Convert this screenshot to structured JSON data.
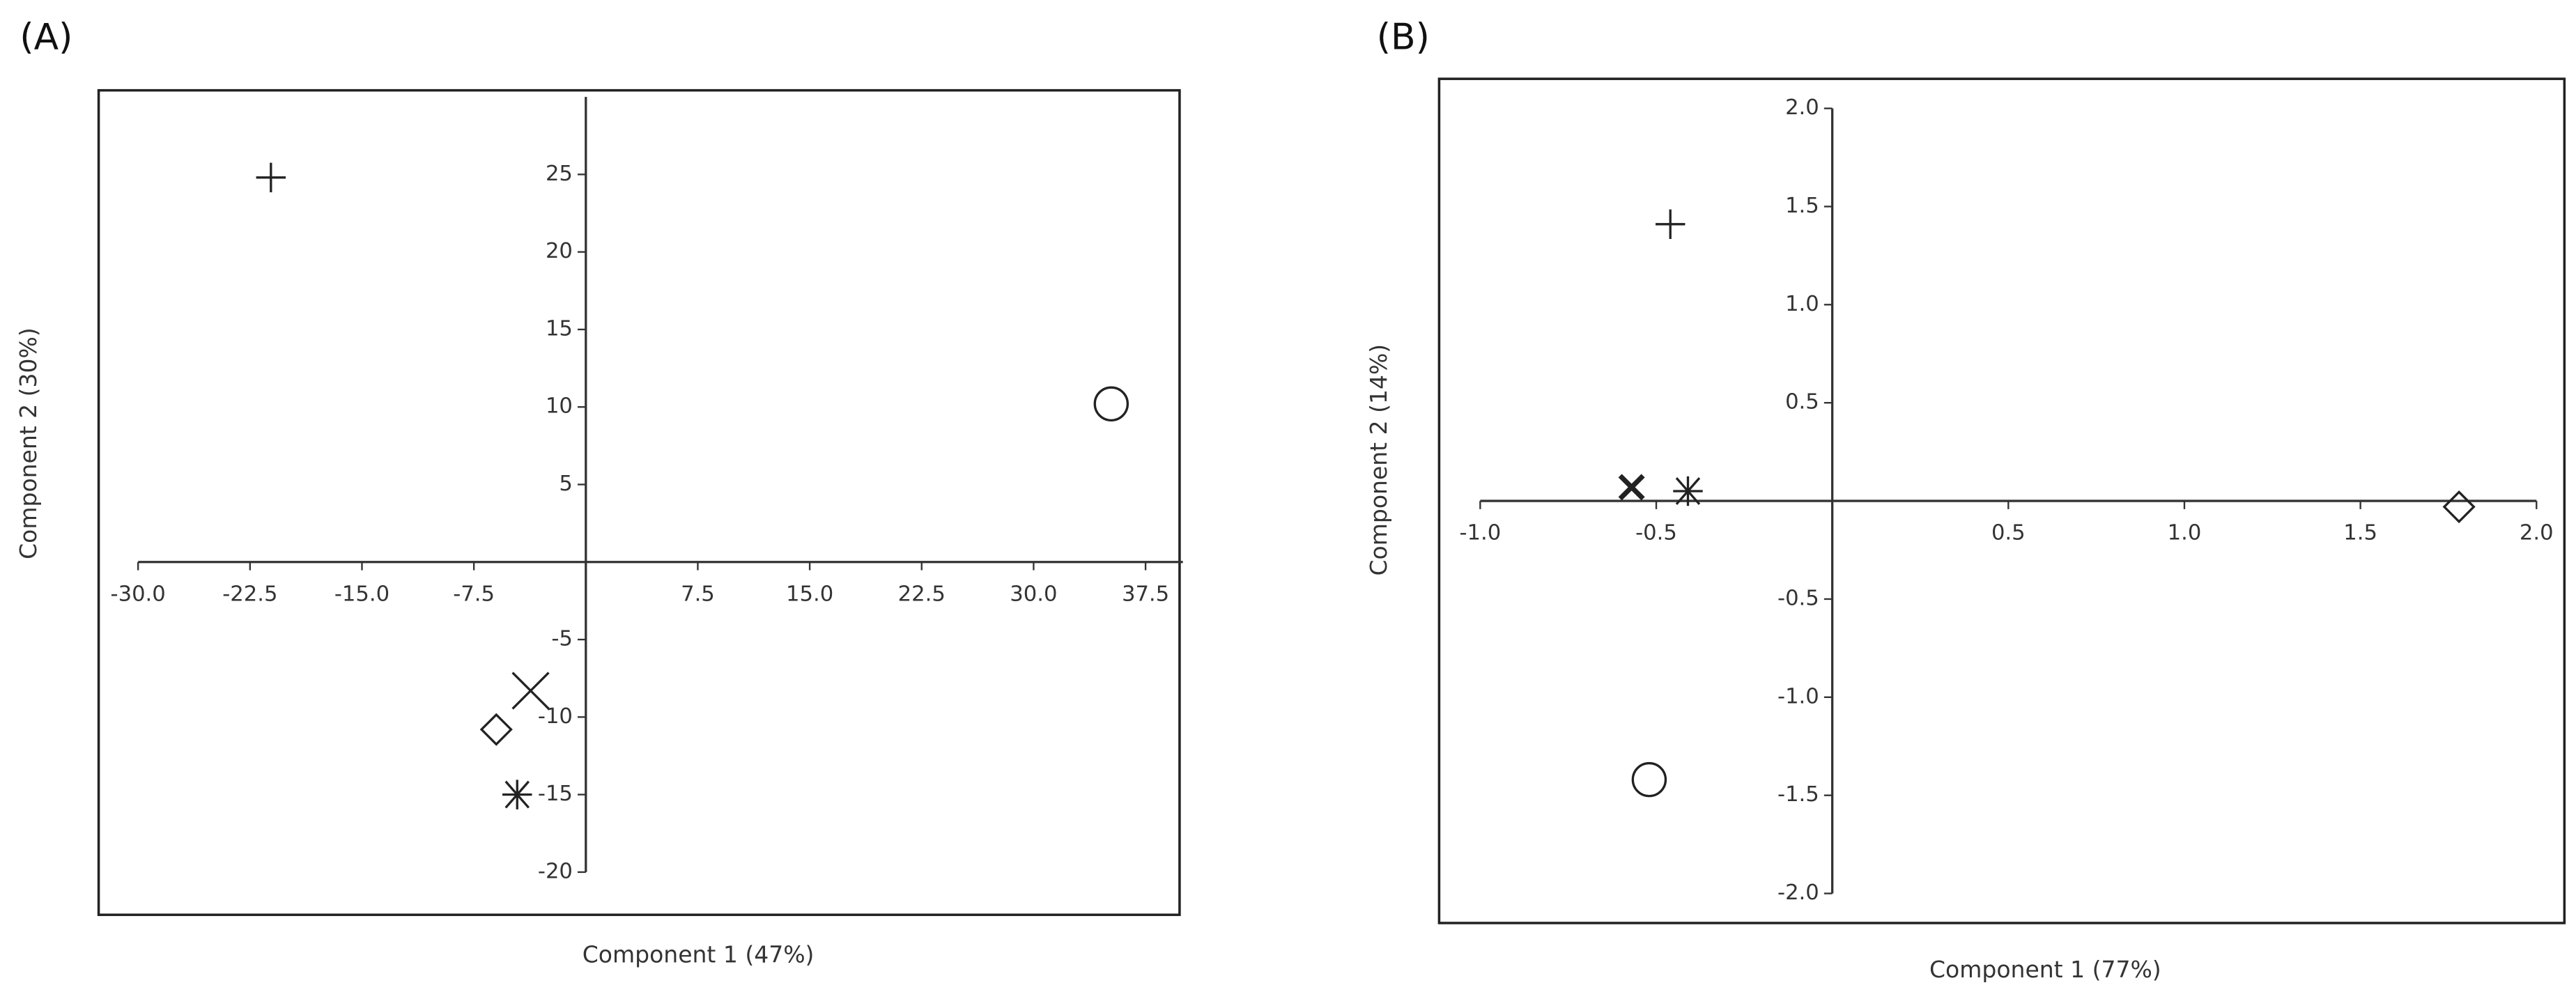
{
  "chart_data": [
    {
      "type": "scatter",
      "title": "(A)",
      "x_label": "Component 1 (47%)",
      "y_label": "Component 2 (30%)",
      "x": [
        -21.1,
        35.2,
        -3.7,
        -6.0,
        -4.6
      ],
      "values": [
        24.8,
        10.2,
        -8.3,
        -10.8,
        -15.0
      ],
      "markers": [
        "plus",
        "circle",
        "x",
        "diamond",
        "asterisk"
      ],
      "color": "#222222",
      "xlim": [
        -30,
        40
      ],
      "ylim": [
        -20,
        30
      ],
      "xticks": [
        {
          "value": -30,
          "label": "-30.0"
        },
        -22.5,
        {
          "value": -15,
          "label": "-15.0"
        },
        -7.5,
        7.5,
        {
          "value": 15,
          "label": "15.0"
        },
        22.5,
        {
          "value": 30,
          "label": "30.0"
        },
        37.5
      ],
      "yticks": [
        25,
        20,
        15,
        10,
        5,
        -5,
        -10,
        -15,
        -20
      ]
    },
    {
      "type": "scatter",
      "title": "(B)",
      "x_label": "Component 1 (77%)",
      "y_label": "Component 2 (14%)",
      "x": [
        -0.46,
        -0.57,
        -0.41,
        1.78,
        -0.52
      ],
      "values": [
        1.41,
        0.07,
        0.05,
        -0.03,
        -1.42
      ],
      "markers": [
        "plus",
        "x-bold",
        "asterisk",
        "diamond",
        "circle"
      ],
      "color": "#222222",
      "xlim": [
        -1,
        2
      ],
      "ylim": [
        -2,
        2
      ],
      "xticks": [
        {
          "value": -1,
          "label": "-1.0"
        },
        -0.5,
        0.5,
        {
          "value": 1,
          "label": "1.0"
        },
        1.5,
        {
          "value": 2,
          "label": "2.0"
        }
      ],
      "yticks": [
        {
          "value": 2,
          "label": "2.0"
        },
        1.5,
        {
          "value": 1,
          "label": "1.0"
        },
        0.5,
        -0.5,
        {
          "value": -1,
          "label": "-1.0"
        },
        -1.5,
        {
          "value": -2,
          "label": "-2.0"
        }
      ]
    }
  ]
}
